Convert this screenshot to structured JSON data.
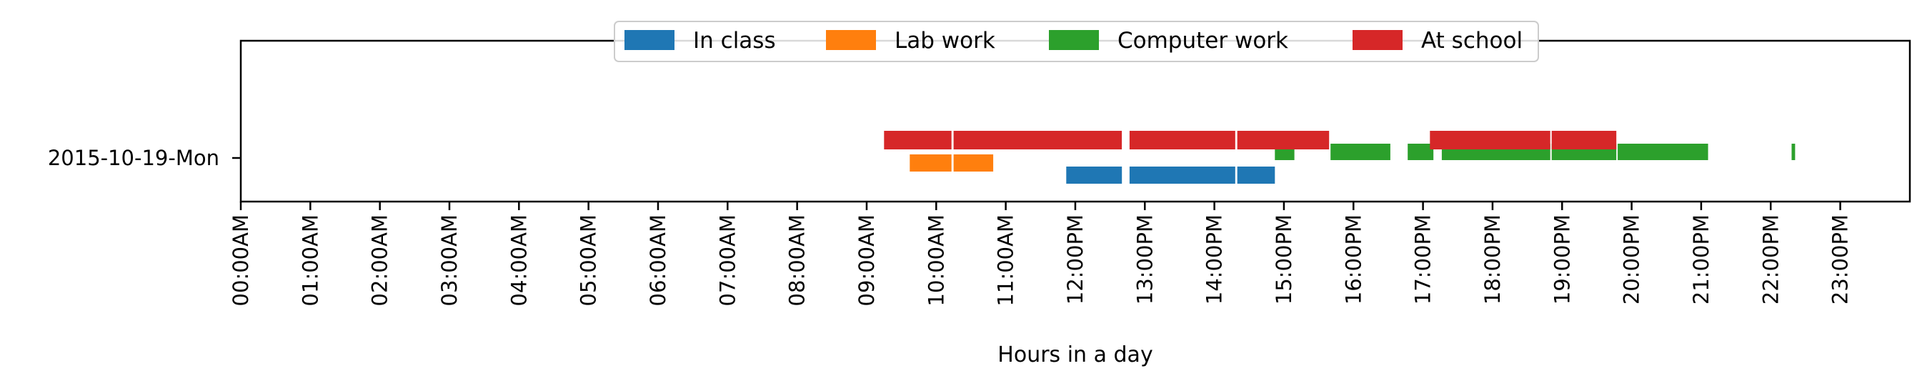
{
  "chart_data": {
    "type": "timeline",
    "title": "",
    "xlabel": "Hours in a day",
    "ylabel": "",
    "xlim": [
      0,
      24
    ],
    "day_label": "2015-10-19-Mon",
    "x_ticks": [
      "00:00AM",
      "01:00AM",
      "02:00AM",
      "03:00AM",
      "04:00AM",
      "05:00AM",
      "06:00AM",
      "07:00AM",
      "08:00AM",
      "09:00AM",
      "10:00AM",
      "11:00AM",
      "12:00PM",
      "13:00PM",
      "14:00PM",
      "15:00PM",
      "16:00PM",
      "17:00PM",
      "18:00PM",
      "19:00PM",
      "20:00PM",
      "21:00PM",
      "22:00PM",
      "23:00PM"
    ],
    "grid": false,
    "legend_position": "top-center",
    "series": [
      {
        "name": "In class",
        "color": "#1f77b4",
        "intervals": [
          [
            11.87,
            12.67
          ],
          [
            12.78,
            14.3
          ],
          [
            14.33,
            14.87
          ]
        ]
      },
      {
        "name": "Lab work",
        "color": "#ff7f0e",
        "intervals": [
          [
            9.62,
            10.22
          ],
          [
            10.25,
            10.82
          ]
        ]
      },
      {
        "name": "Computer work",
        "color": "#2ca02c",
        "intervals": [
          [
            14.87,
            15.15
          ],
          [
            15.67,
            16.53
          ],
          [
            16.78,
            17.15
          ],
          [
            17.27,
            18.83
          ],
          [
            18.85,
            19.78
          ],
          [
            19.8,
            21.1
          ],
          [
            22.3,
            22.35
          ]
        ]
      },
      {
        "name": "At school",
        "color": "#d62728",
        "intervals": [
          [
            9.25,
            10.22
          ],
          [
            10.25,
            12.67
          ],
          [
            12.78,
            14.3
          ],
          [
            14.33,
            15.65
          ],
          [
            17.1,
            18.83
          ],
          [
            18.85,
            19.78
          ]
        ]
      }
    ]
  }
}
